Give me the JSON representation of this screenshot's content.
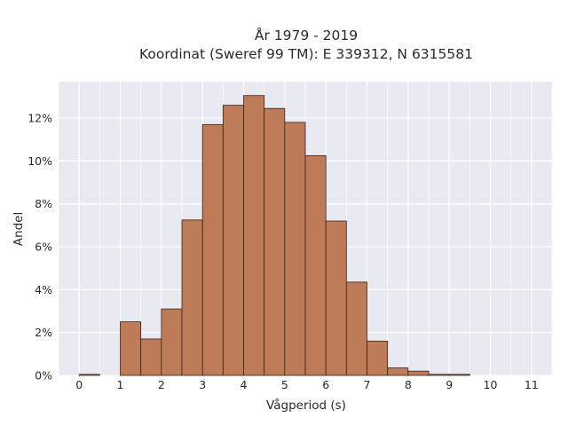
{
  "chart_data": {
    "type": "bar",
    "title_line1": "År 1979 - 2019",
    "title_line2": "Koordinat (Sweref 99 TM): E 339312, N 6315581",
    "xlabel": "Vågperiod (s)",
    "ylabel": "Andel",
    "bin_width": 0.5,
    "bins": [
      {
        "start": 0.0,
        "value": 0.05
      },
      {
        "start": 0.5,
        "value": 0.0
      },
      {
        "start": 1.0,
        "value": 2.5
      },
      {
        "start": 1.5,
        "value": 1.7
      },
      {
        "start": 2.0,
        "value": 3.1
      },
      {
        "start": 2.5,
        "value": 7.25
      },
      {
        "start": 3.0,
        "value": 11.7
      },
      {
        "start": 3.5,
        "value": 12.6
      },
      {
        "start": 4.0,
        "value": 13.05
      },
      {
        "start": 4.5,
        "value": 12.45
      },
      {
        "start": 5.0,
        "value": 11.8
      },
      {
        "start": 5.5,
        "value": 10.25
      },
      {
        "start": 6.0,
        "value": 7.2
      },
      {
        "start": 6.5,
        "value": 4.35
      },
      {
        "start": 7.0,
        "value": 1.6
      },
      {
        "start": 7.5,
        "value": 0.35
      },
      {
        "start": 8.0,
        "value": 0.2
      },
      {
        "start": 8.5,
        "value": 0.05
      },
      {
        "start": 9.0,
        "value": 0.05
      },
      {
        "start": 9.5,
        "value": 0.0
      }
    ],
    "xticks": [
      0,
      1,
      2,
      3,
      4,
      5,
      6,
      7,
      8,
      9,
      10,
      11
    ],
    "yticks": [
      0,
      2,
      4,
      6,
      8,
      10,
      12
    ],
    "ytick_labels": [
      "0%",
      "2%",
      "4%",
      "6%",
      "8%",
      "10%",
      "12%"
    ],
    "xlim": [
      -0.5,
      11.5
    ],
    "ylim": [
      0,
      13.7
    ],
    "grid": true,
    "colors": {
      "bar_fill": "#be7b57",
      "bar_edge": "#3a2418",
      "plot_bg": "#e9e9f2",
      "grid": "#ffffff"
    }
  }
}
